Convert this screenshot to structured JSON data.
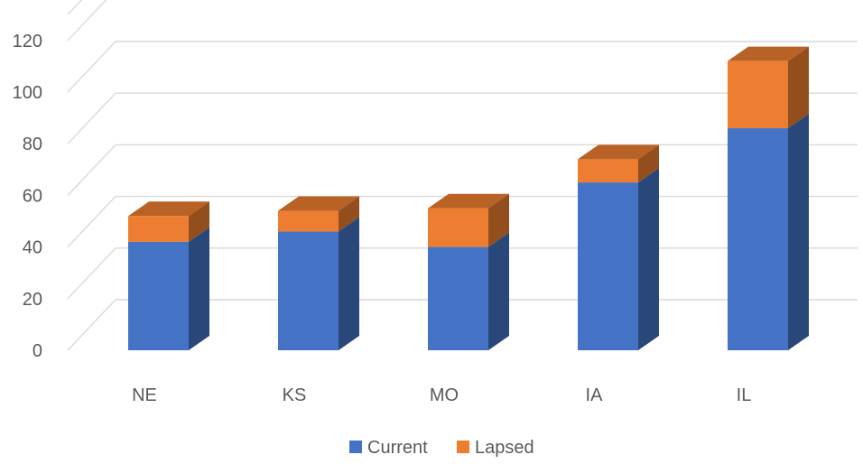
{
  "chart_data": {
    "type": "bar",
    "stacked": true,
    "style": "3d-column",
    "categories": [
      "NE",
      "KS",
      "MO",
      "IA",
      "IL"
    ],
    "series": [
      {
        "name": "Current",
        "values": [
          42,
          46,
          40,
          65,
          86
        ],
        "color": "#4472c4"
      },
      {
        "name": "Lapsed",
        "values": [
          10,
          8,
          15,
          9,
          26
        ],
        "color": "#ed7d31"
      }
    ],
    "yticks": [
      0,
      20,
      40,
      60,
      80,
      100,
      120
    ],
    "ylim": [
      0,
      130
    ],
    "grid": true,
    "legend": "bottom"
  }
}
